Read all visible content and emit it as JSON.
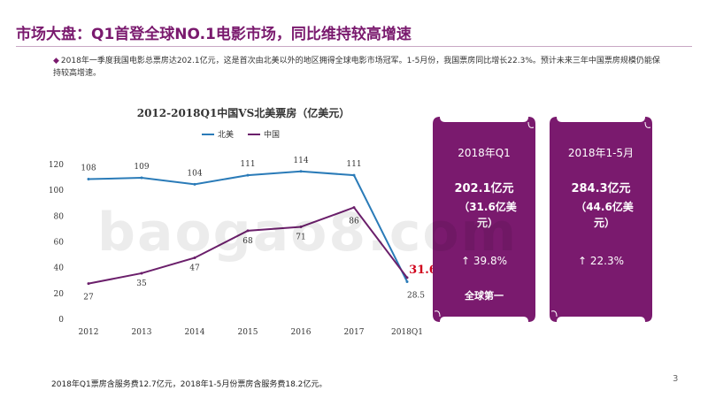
{
  "header": {
    "title": "市场大盘：Q1首登全球NO.1电影市场，同比维持较高增速",
    "bullet_marker": "◆",
    "bullet_text": "2018年一季度我国电影总票房达202.1亿元，这是首次由北美以外的地区拥得全球电影市场冠军。1-5月份，我国票房同比增长22.3%。预计未来三年中国票房规模仍能保持较高增速。"
  },
  "footer": {
    "note": "2018年Q1票房含服务费12.7亿元，2018年1-5月份票房含服务费18.2亿元。",
    "page_number": "3"
  },
  "watermark": "baogao8.com",
  "chart_data": {
    "type": "line",
    "title": "2012-2018Q1中国VS北美票房（亿美元）",
    "categories": [
      "2012",
      "2013",
      "2014",
      "2015",
      "2016",
      "2017",
      "2018Q1"
    ],
    "ylim": [
      0,
      120
    ],
    "yticks": [
      0,
      20,
      40,
      60,
      80,
      100,
      120
    ],
    "legend_position": "top",
    "grid": false,
    "series": [
      {
        "name": "北美",
        "color": "#2a7bb8",
        "values": [
          108,
          109,
          104,
          111,
          114,
          111,
          28.5
        ],
        "labels": [
          "108",
          "109",
          "104",
          "111",
          "114",
          "111",
          "28.5"
        ]
      },
      {
        "name": "中国",
        "color": "#6b1f6b",
        "values": [
          27,
          35,
          47,
          68,
          71,
          86,
          31.6
        ],
        "labels": [
          "27",
          "35",
          "47",
          "68",
          "71",
          "86",
          "31.6"
        ]
      }
    ],
    "highlight_label": {
      "text": "31.6",
      "color": "#d0021b"
    }
  },
  "panels": [
    {
      "period": "2018年Q1",
      "value": "202.1亿元",
      "sub": "（31.6亿美元）",
      "growth": "↑ 39.8%",
      "rank": "全球第一"
    },
    {
      "period": "2018年1-5月",
      "value": "284.3亿元",
      "sub": "（44.6亿美元）",
      "growth": "↑ 22.3%",
      "rank": ""
    }
  ],
  "colors": {
    "accent": "#7a1a6e",
    "panel": "#7a1a6e"
  }
}
